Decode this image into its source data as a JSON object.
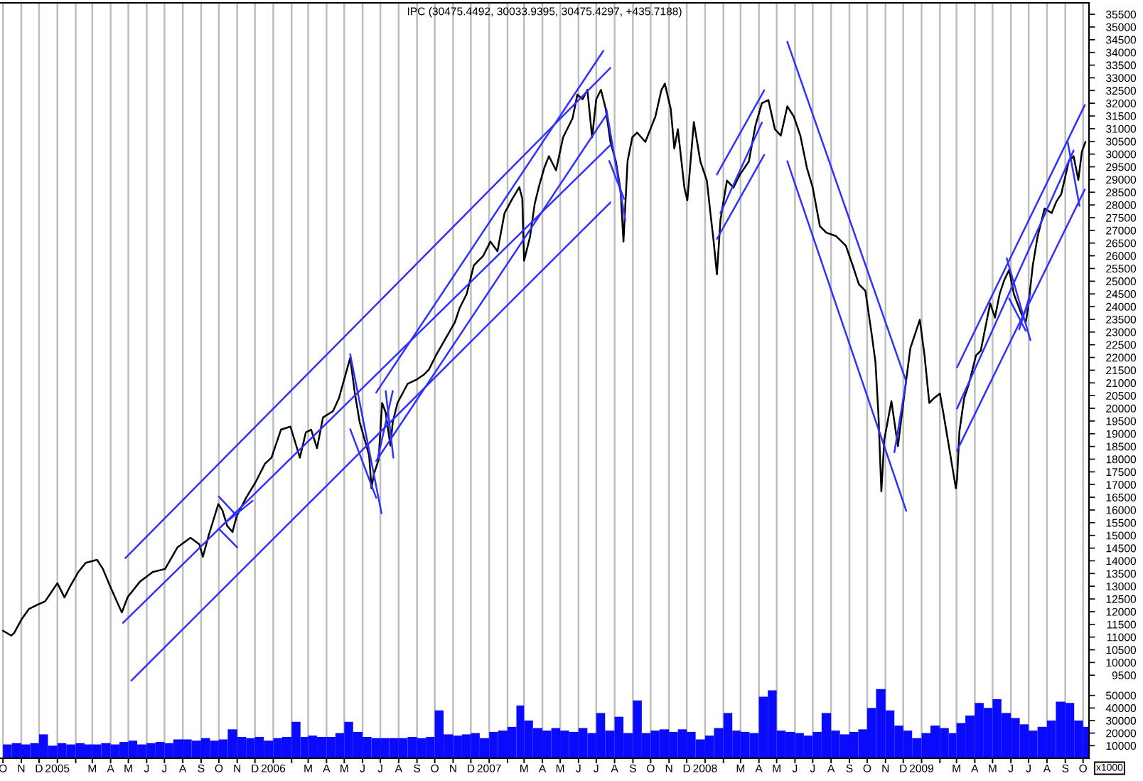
{
  "chart_data": [
    {
      "type": "line",
      "title": "IPC (30475.4492, 30033.9395, 30475.4297, +435.7188)",
      "xlim": [
        "2004-09-26",
        "2009-10-11"
      ],
      "xticks": [
        {
          "value": "2004-10-01",
          "label": null
        },
        {
          "value": "2004-11-01",
          "label": null
        },
        {
          "value": "2004-12-01",
          "label": null
        },
        {
          "value": "2005-01-01",
          "label": null
        },
        {
          "value": "2005-02-01",
          "label": null
        },
        {
          "value": "2005-03-01",
          "label": null
        },
        {
          "value": "2005-04-01",
          "label": null
        },
        {
          "value": "2005-05-01",
          "label": null
        },
        {
          "value": "2005-06-01",
          "label": null
        },
        {
          "value": "2005-07-01",
          "label": null
        },
        {
          "value": "2005-08-01",
          "label": null
        },
        {
          "value": "2005-09-01",
          "label": null
        },
        {
          "value": "2005-10-01",
          "label": null
        },
        {
          "value": "2005-11-01",
          "label": null
        },
        {
          "value": "2005-12-01",
          "label": null
        },
        {
          "value": "2006-01-01",
          "label": null
        },
        {
          "value": "2006-02-01",
          "label": null
        },
        {
          "value": "2006-03-01",
          "label": null
        },
        {
          "value": "2006-04-01",
          "label": null
        },
        {
          "value": "2006-05-01",
          "label": null
        },
        {
          "value": "2006-06-01",
          "label": null
        },
        {
          "value": "2006-07-01",
          "label": null
        },
        {
          "value": "2006-08-01",
          "label": null
        },
        {
          "value": "2006-09-01",
          "label": null
        },
        {
          "value": "2006-10-01",
          "label": null
        },
        {
          "value": "2006-11-01",
          "label": null
        },
        {
          "value": "2006-12-01",
          "label": null
        },
        {
          "value": "2007-01-01",
          "label": null
        },
        {
          "value": "2007-02-01",
          "label": null
        },
        {
          "value": "2007-03-01",
          "label": null
        },
        {
          "value": "2007-04-01",
          "label": null
        },
        {
          "value": "2007-05-01",
          "label": null
        },
        {
          "value": "2007-06-01",
          "label": null
        },
        {
          "value": "2007-07-01",
          "label": null
        },
        {
          "value": "2007-08-01",
          "label": null
        },
        {
          "value": "2007-09-01",
          "label": null
        },
        {
          "value": "2007-10-01",
          "label": null
        },
        {
          "value": "2007-11-01",
          "label": null
        },
        {
          "value": "2007-12-01",
          "label": null
        },
        {
          "value": "2008-01-01",
          "label": null
        },
        {
          "value": "2008-02-01",
          "label": null
        },
        {
          "value": "2008-03-01",
          "label": null
        },
        {
          "value": "2008-04-01",
          "label": null
        },
        {
          "value": "2008-05-01",
          "label": null
        },
        {
          "value": "2008-06-01",
          "label": null
        },
        {
          "value": "2008-07-01",
          "label": null
        },
        {
          "value": "2008-08-01",
          "label": null
        },
        {
          "value": "2008-09-01",
          "label": null
        },
        {
          "value": "2008-10-01",
          "label": null
        },
        {
          "value": "2008-11-01",
          "label": null
        },
        {
          "value": "2008-12-01",
          "label": null
        },
        {
          "value": "2009-01-01",
          "label": null
        },
        {
          "value": "2009-02-01",
          "label": null
        },
        {
          "value": "2009-03-01",
          "label": null
        },
        {
          "value": "2009-04-01",
          "label": null
        },
        {
          "value": "2009-05-01",
          "label": null
        },
        {
          "value": "2009-06-01",
          "label": null
        },
        {
          "value": "2009-07-01",
          "label": null
        },
        {
          "value": "2009-08-01",
          "label": null
        },
        {
          "value": "2009-09-01",
          "label": null
        },
        {
          "value": "2009-10-01",
          "label": null
        }
      ],
      "ylim": [
        9200,
        35950
      ],
      "yticks": [
        9500,
        10000,
        10500,
        11000,
        11500,
        12000,
        12500,
        13000,
        13500,
        14000,
        14500,
        15000,
        15500,
        16000,
        16500,
        17000,
        17500,
        18000,
        18500,
        19000,
        19500,
        20000,
        20500,
        21000,
        21500,
        22000,
        22500,
        23000,
        23500,
        24000,
        24500,
        25000,
        25500,
        26000,
        26500,
        27000,
        27500,
        28000,
        28500,
        29000,
        29500,
        30000,
        30500,
        31000,
        31500,
        32000,
        32500,
        33000,
        33500,
        34000,
        34500,
        35000,
        35500
      ],
      "grid": "x",
      "tick_labels": "y",
      "series": [
        {
          "color": "#000000",
          "x": [
            "2004-10-01",
            "2004-10-15",
            "2004-10-20",
            "2004-11-02",
            "2004-11-14",
            "2004-11-29",
            "2004-12-11",
            "2004-12-19",
            "2005-01-01",
            "2005-01-13",
            "2005-01-21",
            "2005-02-06",
            "2005-02-18",
            "2005-03-09",
            "2005-03-19",
            "2005-03-30",
            "2005-04-15",
            "2005-04-20",
            "2005-04-30",
            "2005-05-21",
            "2005-06-11",
            "2005-07-02",
            "2005-07-23",
            "2005-08-14",
            "2005-08-29",
            "2005-09-04",
            "2005-09-14",
            "2005-09-30",
            "2005-10-07",
            "2005-10-15",
            "2005-10-24",
            "2005-10-31",
            "2005-11-16",
            "2005-12-02",
            "2005-12-18",
            "2005-12-29",
            "2006-01-14",
            "2006-01-30",
            "2006-02-15",
            "2006-02-25",
            "2006-03-06",
            "2006-03-16",
            "2006-03-26",
            "2006-04-12",
            "2006-04-22",
            "2006-05-11",
            "2006-05-19",
            "2006-05-27",
            "2006-06-04",
            "2006-06-12",
            "2006-06-16",
            "2006-06-20",
            "2006-06-28",
            "2006-07-04",
            "2006-07-10",
            "2006-07-18",
            "2006-07-22",
            "2006-07-30",
            "2006-08-16",
            "2006-09-01",
            "2006-09-13",
            "2006-09-21",
            "2006-10-03",
            "2006-10-19",
            "2006-11-04",
            "2006-11-12",
            "2006-11-24",
            "2006-12-06",
            "2006-12-22",
            "2007-01-03",
            "2007-01-15",
            "2007-01-27",
            "2007-02-09",
            "2007-02-21",
            "2007-02-26",
            "2007-03-01",
            "2007-03-11",
            "2007-03-19",
            "2007-03-27",
            "2007-04-04",
            "2007-04-12",
            "2007-04-24",
            "2007-05-06",
            "2007-05-22",
            "2007-05-30",
            "2007-06-08",
            "2007-06-16",
            "2007-06-24",
            "2007-07-01",
            "2007-07-09",
            "2007-07-17",
            "2007-07-25",
            "2007-08-03",
            "2007-08-11",
            "2007-08-16",
            "2007-08-23",
            "2007-08-31",
            "2007-09-08",
            "2007-09-22",
            "2007-10-09",
            "2007-10-19",
            "2007-10-25",
            "2007-11-04",
            "2007-11-10",
            "2007-11-16",
            "2007-11-27",
            "2007-12-02",
            "2007-12-13",
            "2007-12-24",
            "2008-01-04",
            "2008-01-10",
            "2008-01-15",
            "2008-01-21",
            "2008-01-27",
            "2008-02-07",
            "2008-02-18",
            "2008-02-29",
            "2008-03-15",
            "2008-03-26",
            "2008-04-06",
            "2008-04-17",
            "2008-04-28",
            "2008-05-08",
            "2008-05-19",
            "2008-05-30",
            "2008-06-10",
            "2008-06-21",
            "2008-07-01",
            "2008-07-13",
            "2008-07-24",
            "2008-08-09",
            "2008-08-26",
            "2008-09-06",
            "2008-09-17",
            "2008-09-28",
            "2008-10-09",
            "2008-10-15",
            "2008-10-20",
            "2008-10-25",
            "2008-10-30",
            "2008-11-11",
            "2008-11-22",
            "2008-12-03",
            "2008-12-13",
            "2008-12-29",
            "2009-01-06",
            "2009-01-14",
            "2009-01-22",
            "2009-02-01",
            "2009-02-08",
            "2009-02-16",
            "2009-02-24",
            "2009-02-28",
            "2009-03-02",
            "2009-03-06",
            "2009-03-14",
            "2009-03-22",
            "2009-04-03",
            "2009-04-11",
            "2009-04-19",
            "2009-04-27",
            "2009-05-05",
            "2009-05-13",
            "2009-05-21",
            "2009-05-29",
            "2009-06-06",
            "2009-06-18",
            "2009-06-26",
            "2009-06-30",
            "2009-07-08",
            "2009-07-16",
            "2009-07-28",
            "2009-08-09",
            "2009-08-17",
            "2009-08-25",
            "2009-09-07",
            "2009-09-15",
            "2009-09-23",
            "2009-09-29",
            "2009-10-05"
          ],
          "values": [
            11250,
            11060,
            11160,
            11720,
            12110,
            12280,
            12400,
            12670,
            13120,
            12560,
            12930,
            13580,
            13920,
            14040,
            13680,
            13060,
            12220,
            11970,
            12580,
            13190,
            13560,
            13680,
            14530,
            14910,
            14650,
            14160,
            15020,
            16230,
            15990,
            15380,
            15130,
            15750,
            16480,
            17090,
            17820,
            18060,
            19160,
            19280,
            18060,
            19050,
            19160,
            18430,
            19640,
            19890,
            20400,
            21980,
            20580,
            19460,
            18810,
            18160,
            16850,
            17410,
            17970,
            20210,
            19840,
            18530,
            19460,
            20210,
            20960,
            21140,
            21330,
            21520,
            22080,
            22730,
            23380,
            23940,
            24500,
            25620,
            26000,
            26560,
            26180,
            27680,
            28240,
            28700,
            28240,
            25810,
            26740,
            28050,
            28800,
            29450,
            29920,
            29360,
            30660,
            31410,
            32340,
            32160,
            32530,
            30660,
            32160,
            32530,
            31780,
            30480,
            29730,
            28610,
            26560,
            29730,
            30660,
            30850,
            30480,
            31480,
            32510,
            32770,
            31770,
            30220,
            30980,
            28680,
            28180,
            31260,
            29710,
            28960,
            27680,
            26670,
            25270,
            27420,
            28960,
            28680,
            29200,
            29710,
            31110,
            32000,
            32130,
            30980,
            30730,
            31880,
            31480,
            30730,
            29470,
            28680,
            27170,
            26910,
            26780,
            26400,
            25660,
            24880,
            24620,
            22860,
            21820,
            19780,
            16730,
            18770,
            20280,
            18510,
            20560,
            22360,
            23480,
            22080,
            20210,
            20400,
            20580,
            19650,
            18530,
            17410,
            16850,
            17220,
            19090,
            20400,
            20960,
            22080,
            22260,
            23200,
            24130,
            23570,
            24500,
            25060,
            25440,
            24500,
            23760,
            23380,
            23940,
            25620,
            26740,
            27860,
            27680,
            28140,
            28420,
            29730,
            29920,
            28980,
            30100,
            30480
          ]
        },
        {
          "type": "line",
          "color": "#3030ff",
          "x": [
            "2005-04-26",
            "2007-07-25"
          ],
          "values": [
            14110,
            33390
          ]
        },
        {
          "type": "line",
          "color": "#3030ff",
          "x": [
            "2005-04-22",
            "2007-07-25"
          ],
          "values": [
            11560,
            30360
          ]
        },
        {
          "type": "line",
          "color": "#3030ff",
          "x": [
            "2005-05-06",
            "2007-07-25"
          ],
          "values": [
            9290,
            28100
          ]
        },
        {
          "type": "line",
          "color": "#3030ff",
          "x": [
            "2006-06-24",
            "2007-07-13"
          ],
          "values": [
            20620,
            34060
          ]
        },
        {
          "type": "line",
          "color": "#3030ff",
          "x": [
            "2006-06-24",
            "2007-07-17"
          ],
          "values": [
            17930,
            31500
          ]
        },
        {
          "type": "line",
          "color": "#3030ff",
          "x": [
            "2005-10-01",
            "2005-11-01"
          ],
          "values": [
            16530,
            15750
          ]
        },
        {
          "type": "line",
          "color": "#3030ff",
          "x": [
            "2005-10-01",
            "2005-11-01"
          ],
          "values": [
            15260,
            14530
          ]
        },
        {
          "type": "line",
          "color": "#3030ff",
          "x": [
            "2005-10-06",
            "2005-11-27"
          ],
          "values": [
            15380,
            16360
          ]
        },
        {
          "type": "line",
          "color": "#3030ff",
          "x": [
            "2006-05-11",
            "2006-07-03"
          ],
          "values": [
            22130,
            15870
          ]
        },
        {
          "type": "line",
          "color": "#3030ff",
          "x": [
            "2006-05-11",
            "2006-06-24"
          ],
          "values": [
            19180,
            16480
          ]
        },
        {
          "type": "line",
          "color": "#3030ff",
          "x": [
            "2006-07-10",
            "2006-07-23"
          ],
          "values": [
            20680,
            18060
          ]
        },
        {
          "type": "line",
          "color": "#3030ff",
          "x": [
            "2006-06-26",
            "2006-07-22"
          ],
          "values": [
            17970,
            20680
          ]
        },
        {
          "type": "line",
          "color": "#3030ff",
          "x": [
            "2007-07-18",
            "2007-08-19"
          ],
          "values": [
            31780,
            27400
          ]
        },
        {
          "type": "line",
          "color": "#3030ff",
          "x": [
            "2007-07-23",
            "2007-08-17"
          ],
          "values": [
            29730,
            28240
          ]
        },
        {
          "type": "line",
          "color": "#3030ff",
          "x": [
            "2008-01-21",
            "2008-04-10"
          ],
          "values": [
            29200,
            32510
          ]
        },
        {
          "type": "line",
          "color": "#3030ff",
          "x": [
            "2008-01-27",
            "2008-04-06"
          ],
          "values": [
            27680,
            31240
          ]
        },
        {
          "type": "line",
          "color": "#3030ff",
          "x": [
            "2008-01-21",
            "2008-04-10"
          ],
          "values": [
            26660,
            29970
          ]
        },
        {
          "type": "line",
          "color": "#3030ff",
          "x": [
            "2008-05-19",
            "2008-12-06"
          ],
          "values": [
            34420,
            21060
          ]
        },
        {
          "type": "line",
          "color": "#3030ff",
          "x": [
            "2008-05-19",
            "2008-12-06"
          ],
          "values": [
            29720,
            15970
          ]
        },
        {
          "type": "line",
          "color": "#3030ff",
          "x": [
            "2008-11-16",
            "2008-12-06"
          ],
          "values": [
            18270,
            21070
          ]
        },
        {
          "type": "line",
          "color": "#3030ff",
          "x": [
            "2009-03-02",
            "2009-10-04"
          ],
          "values": [
            21610,
            31930
          ]
        },
        {
          "type": "line",
          "color": "#3030ff",
          "x": [
            "2009-03-02",
            "2009-09-15"
          ],
          "values": [
            19990,
            30140
          ]
        },
        {
          "type": "line",
          "color": "#3030ff",
          "x": [
            "2009-03-02",
            "2009-10-04"
          ],
          "values": [
            18340,
            28610
          ]
        },
        {
          "type": "line",
          "color": "#3030ff",
          "x": [
            "2009-05-25",
            "2009-07-04"
          ],
          "values": [
            25900,
            22680
          ]
        },
        {
          "type": "line",
          "color": "#3030ff",
          "x": [
            "2009-05-29",
            "2009-06-26"
          ],
          "values": [
            24320,
            23050
          ]
        },
        {
          "type": "line",
          "color": "#3030ff",
          "x": [
            "2009-06-15",
            "2009-07-04"
          ],
          "values": [
            23100,
            24500
          ]
        },
        {
          "type": "line",
          "color": "#3030ff",
          "x": [
            "2009-09-05",
            "2009-09-25"
          ],
          "values": [
            30480,
            27960
          ]
        }
      ]
    },
    {
      "type": "bar",
      "ylabel": "x1000",
      "color": "#0a0aff",
      "xlim": [
        "2004-09-26",
        "2009-10-11"
      ],
      "xticks": [
        {
          "value": "2004-10-01",
          "label": "O"
        },
        {
          "value": "2004-11-01",
          "label": "N"
        },
        {
          "value": "2004-12-01",
          "label": "D"
        },
        {
          "value": "2005-01-01",
          "label": "2005"
        },
        {
          "value": "2005-02-01",
          "label": null
        },
        {
          "value": "2005-03-01",
          "label": "M"
        },
        {
          "value": "2005-04-01",
          "label": "A"
        },
        {
          "value": "2005-05-01",
          "label": "M"
        },
        {
          "value": "2005-06-01",
          "label": "J"
        },
        {
          "value": "2005-07-01",
          "label": "J"
        },
        {
          "value": "2005-08-01",
          "label": "A"
        },
        {
          "value": "2005-09-01",
          "label": "S"
        },
        {
          "value": "2005-10-01",
          "label": "O"
        },
        {
          "value": "2005-11-01",
          "label": "N"
        },
        {
          "value": "2005-12-01",
          "label": "D"
        },
        {
          "value": "2006-01-01",
          "label": "2006"
        },
        {
          "value": "2006-02-01",
          "label": null
        },
        {
          "value": "2006-03-01",
          "label": "M"
        },
        {
          "value": "2006-04-01",
          "label": "A"
        },
        {
          "value": "2006-05-01",
          "label": "M"
        },
        {
          "value": "2006-06-01",
          "label": "J"
        },
        {
          "value": "2006-07-01",
          "label": "J"
        },
        {
          "value": "2006-08-01",
          "label": "A"
        },
        {
          "value": "2006-09-01",
          "label": "S"
        },
        {
          "value": "2006-10-01",
          "label": "O"
        },
        {
          "value": "2006-11-01",
          "label": "N"
        },
        {
          "value": "2006-12-01",
          "label": "D"
        },
        {
          "value": "2007-01-01",
          "label": "2007"
        },
        {
          "value": "2007-02-01",
          "label": null
        },
        {
          "value": "2007-03-01",
          "label": "M"
        },
        {
          "value": "2007-04-01",
          "label": "A"
        },
        {
          "value": "2007-05-01",
          "label": "M"
        },
        {
          "value": "2007-06-01",
          "label": "J"
        },
        {
          "value": "2007-07-01",
          "label": "J"
        },
        {
          "value": "2007-08-01",
          "label": "A"
        },
        {
          "value": "2007-09-01",
          "label": "S"
        },
        {
          "value": "2007-10-01",
          "label": "O"
        },
        {
          "value": "2007-11-01",
          "label": "N"
        },
        {
          "value": "2007-12-01",
          "label": "D"
        },
        {
          "value": "2008-01-01",
          "label": "2008"
        },
        {
          "value": "2008-02-01",
          "label": null
        },
        {
          "value": "2008-03-01",
          "label": "M"
        },
        {
          "value": "2008-04-01",
          "label": "A"
        },
        {
          "value": "2008-05-01",
          "label": "M"
        },
        {
          "value": "2008-06-01",
          "label": "J"
        },
        {
          "value": "2008-07-01",
          "label": "J"
        },
        {
          "value": "2008-08-01",
          "label": "A"
        },
        {
          "value": "2008-09-01",
          "label": "S"
        },
        {
          "value": "2008-10-01",
          "label": "O"
        },
        {
          "value": "2008-11-01",
          "label": "N"
        },
        {
          "value": "2008-12-01",
          "label": "D"
        },
        {
          "value": "2009-01-01",
          "label": "2009"
        },
        {
          "value": "2009-02-01",
          "label": null
        },
        {
          "value": "2009-03-01",
          "label": "M"
        },
        {
          "value": "2009-04-01",
          "label": "A"
        },
        {
          "value": "2009-05-01",
          "label": "M"
        },
        {
          "value": "2009-06-01",
          "label": "J"
        },
        {
          "value": "2009-07-01",
          "label": "J"
        },
        {
          "value": "2009-08-01",
          "label": "A"
        },
        {
          "value": "2009-09-01",
          "label": "S"
        },
        {
          "value": "2009-10-01",
          "label": "O"
        }
      ],
      "ylim": [
        0,
        60000
      ],
      "yticks": [
        10000,
        20000,
        30000,
        40000,
        50000
      ],
      "grid": "x",
      "x": [
        "2004-10-01",
        "2004-10-16",
        "2004-11-01",
        "2004-11-16",
        "2004-12-01",
        "2004-12-16",
        "2005-01-01",
        "2005-01-16",
        "2005-02-01",
        "2005-02-16",
        "2005-03-01",
        "2005-03-16",
        "2005-04-01",
        "2005-04-16",
        "2005-05-01",
        "2005-05-16",
        "2005-06-01",
        "2005-06-16",
        "2005-07-01",
        "2005-07-16",
        "2005-08-01",
        "2005-08-16",
        "2005-09-01",
        "2005-09-16",
        "2005-10-01",
        "2005-10-16",
        "2005-11-01",
        "2005-11-16",
        "2005-12-01",
        "2005-12-16",
        "2006-01-01",
        "2006-01-16",
        "2006-02-01",
        "2006-02-16",
        "2006-03-01",
        "2006-03-16",
        "2006-04-01",
        "2006-04-16",
        "2006-05-01",
        "2006-05-16",
        "2006-06-01",
        "2006-06-16",
        "2006-07-01",
        "2006-07-16",
        "2006-08-01",
        "2006-08-16",
        "2006-09-01",
        "2006-09-16",
        "2006-10-01",
        "2006-10-16",
        "2006-11-01",
        "2006-11-16",
        "2006-12-01",
        "2006-12-16",
        "2007-01-01",
        "2007-01-16",
        "2007-02-01",
        "2007-02-16",
        "2007-03-01",
        "2007-03-16",
        "2007-04-01",
        "2007-04-16",
        "2007-05-01",
        "2007-05-16",
        "2007-06-01",
        "2007-06-16",
        "2007-07-01",
        "2007-07-16",
        "2007-08-01",
        "2007-08-16",
        "2007-09-01",
        "2007-09-16",
        "2007-10-01",
        "2007-10-16",
        "2007-11-01",
        "2007-11-16",
        "2007-12-01",
        "2007-12-16",
        "2008-01-01",
        "2008-01-16",
        "2008-02-01",
        "2008-02-16",
        "2008-03-01",
        "2008-03-16",
        "2008-04-01",
        "2008-04-16",
        "2008-05-01",
        "2008-05-16",
        "2008-06-01",
        "2008-06-16",
        "2008-07-01",
        "2008-07-16",
        "2008-08-01",
        "2008-08-16",
        "2008-09-01",
        "2008-09-16",
        "2008-10-01",
        "2008-10-16",
        "2008-11-01",
        "2008-11-16",
        "2008-12-01",
        "2008-12-16",
        "2009-01-01",
        "2009-01-16",
        "2009-02-01",
        "2009-02-16",
        "2009-03-01",
        "2009-03-16",
        "2009-04-01",
        "2009-04-16",
        "2009-05-01",
        "2009-05-16",
        "2009-06-01",
        "2009-06-16",
        "2009-07-01",
        "2009-07-16",
        "2009-08-01",
        "2009-08-16",
        "2009-09-01",
        "2009-09-16",
        "2009-10-01"
      ],
      "values": [
        11000,
        12000,
        11000,
        12000,
        19000,
        10000,
        12000,
        11000,
        12000,
        11000,
        11000,
        12000,
        11000,
        13000,
        14000,
        11000,
        12000,
        13000,
        12000,
        15000,
        15000,
        14000,
        16000,
        14000,
        15000,
        23000,
        17000,
        16000,
        17000,
        14000,
        16000,
        17000,
        29000,
        17000,
        18000,
        17000,
        17000,
        20000,
        29000,
        21000,
        17000,
        16000,
        16000,
        16000,
        16000,
        17000,
        16000,
        17000,
        38000,
        19000,
        18000,
        19000,
        20000,
        16000,
        21000,
        22000,
        25000,
        42000,
        30000,
        24000,
        22000,
        24000,
        22000,
        21000,
        24000,
        20000,
        36000,
        22000,
        33000,
        20000,
        46000,
        20000,
        22000,
        23000,
        21000,
        23000,
        21000,
        15000,
        18000,
        24000,
        36000,
        22000,
        21000,
        20000,
        49000,
        54000,
        22000,
        21000,
        20000,
        18000,
        21000,
        36000,
        22000,
        19000,
        21000,
        23000,
        40000,
        55000,
        38000,
        26000,
        22000,
        16000,
        20000,
        26000,
        24000,
        20000,
        28000,
        34000,
        44000,
        40000,
        47000,
        36000,
        32000,
        27000,
        22000,
        25000,
        30000,
        45000,
        44000,
        30000,
        25000
      ]
    }
  ]
}
